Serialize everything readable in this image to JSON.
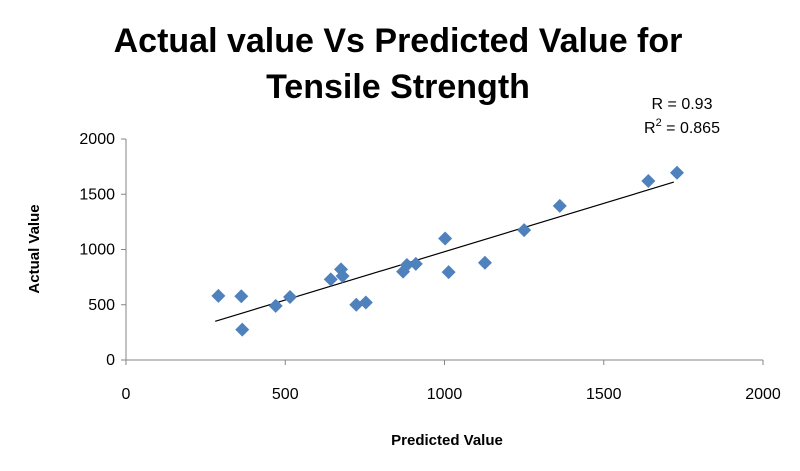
{
  "chart_data": {
    "type": "scatter",
    "title_line1": "Actual value Vs Predicted Value for",
    "title_line2": "Tensile Strength",
    "xlabel": "Predicted Value",
    "ylabel": "Actual Value",
    "xlim": [
      0,
      2000
    ],
    "ylim": [
      0,
      2000
    ],
    "xticks": [
      "0",
      "500",
      "1000",
      "1500",
      "2000"
    ],
    "yticks": [
      "0",
      "500",
      "1000",
      "1500",
      "2000"
    ],
    "grid": false,
    "marker_color": "#4f81bd",
    "trendline": {
      "x1": 280,
      "y1": 350,
      "x2": 1720,
      "y2": 1610
    },
    "annotations": {
      "r": "R = 0.93",
      "r2_prefix": "R",
      "r2_sup": "2",
      "r2_suffix": " = 0.865"
    },
    "points": [
      {
        "x": 290,
        "y": 580
      },
      {
        "x": 362,
        "y": 577
      },
      {
        "x": 365,
        "y": 275
      },
      {
        "x": 470,
        "y": 490
      },
      {
        "x": 515,
        "y": 570
      },
      {
        "x": 643,
        "y": 730
      },
      {
        "x": 675,
        "y": 820
      },
      {
        "x": 680,
        "y": 760
      },
      {
        "x": 723,
        "y": 500
      },
      {
        "x": 753,
        "y": 520
      },
      {
        "x": 870,
        "y": 800
      },
      {
        "x": 882,
        "y": 860
      },
      {
        "x": 910,
        "y": 870
      },
      {
        "x": 1002,
        "y": 1100
      },
      {
        "x": 1013,
        "y": 795
      },
      {
        "x": 1127,
        "y": 880
      },
      {
        "x": 1250,
        "y": 1175
      },
      {
        "x": 1362,
        "y": 1395
      },
      {
        "x": 1640,
        "y": 1620
      },
      {
        "x": 1730,
        "y": 1695
      }
    ]
  }
}
